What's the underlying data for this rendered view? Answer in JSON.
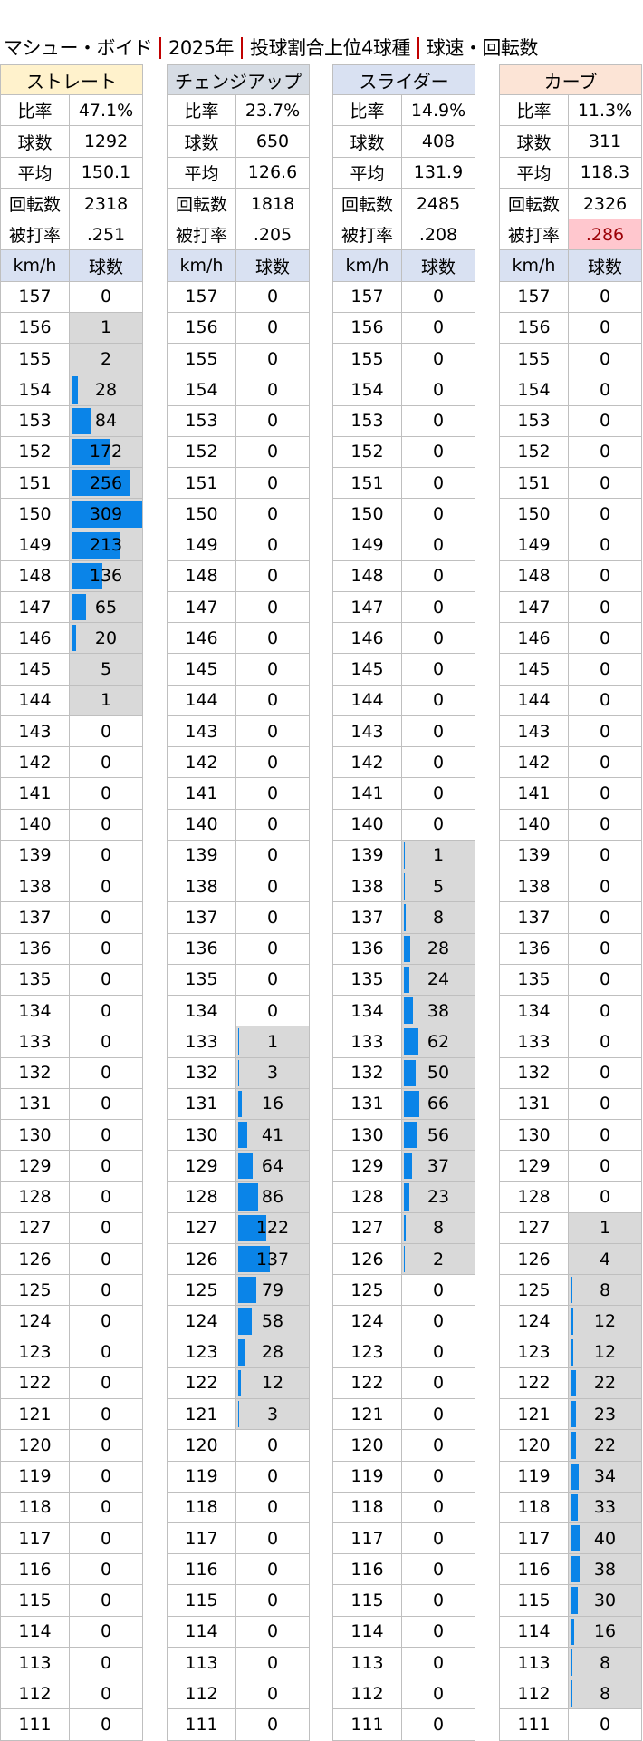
{
  "title": [
    "マシュー・ボイド",
    "2025年",
    "投球割合上位4球種",
    "球速・回転数"
  ],
  "stat_labels": [
    "比率",
    "球数",
    "平均",
    "回転数",
    "被打率"
  ],
  "speed_header": [
    "km/h",
    "球数"
  ],
  "speeds": [
    157,
    156,
    155,
    154,
    153,
    152,
    151,
    150,
    149,
    148,
    147,
    146,
    145,
    144,
    143,
    142,
    141,
    140,
    139,
    138,
    137,
    136,
    135,
    134,
    133,
    132,
    131,
    130,
    129,
    128,
    127,
    126,
    125,
    124,
    123,
    122,
    121,
    120,
    119,
    118,
    117,
    116,
    115,
    114,
    113,
    112,
    111
  ],
  "colors": {
    "bar": "#0a84e8",
    "nonzero_bg": "#d9d9d9",
    "highlight_bg": "#ffc7ce",
    "highlight_text": "#9c0006",
    "subheader_bg": "#d9e1f2"
  },
  "bar_scale_max": 309,
  "pitches": [
    {
      "name": "ストレート",
      "header_color": "#fff2cc",
      "stats": [
        "47.1%",
        "1292",
        "150.1",
        "2318",
        ".251"
      ],
      "highlight_stat": null,
      "counts": [
        0,
        1,
        2,
        28,
        84,
        172,
        256,
        309,
        213,
        136,
        65,
        20,
        5,
        1,
        0,
        0,
        0,
        0,
        0,
        0,
        0,
        0,
        0,
        0,
        0,
        0,
        0,
        0,
        0,
        0,
        0,
        0,
        0,
        0,
        0,
        0,
        0,
        0,
        0,
        0,
        0,
        0,
        0,
        0,
        0,
        0,
        0
      ]
    },
    {
      "name": "チェンジアップ",
      "header_color": "#d6dce4",
      "stats": [
        "23.7%",
        "650",
        "126.6",
        "1818",
        ".205"
      ],
      "highlight_stat": null,
      "counts": [
        0,
        0,
        0,
        0,
        0,
        0,
        0,
        0,
        0,
        0,
        0,
        0,
        0,
        0,
        0,
        0,
        0,
        0,
        0,
        0,
        0,
        0,
        0,
        0,
        1,
        3,
        16,
        41,
        64,
        86,
        122,
        137,
        79,
        58,
        28,
        12,
        3,
        0,
        0,
        0,
        0,
        0,
        0,
        0,
        0,
        0,
        0
      ]
    },
    {
      "name": "スライダー",
      "header_color": "#d9e1f2",
      "stats": [
        "14.9%",
        "408",
        "131.9",
        "2485",
        ".208"
      ],
      "highlight_stat": null,
      "counts": [
        0,
        0,
        0,
        0,
        0,
        0,
        0,
        0,
        0,
        0,
        0,
        0,
        0,
        0,
        0,
        0,
        0,
        0,
        1,
        5,
        8,
        28,
        24,
        38,
        62,
        50,
        66,
        56,
        37,
        23,
        8,
        2,
        0,
        0,
        0,
        0,
        0,
        0,
        0,
        0,
        0,
        0,
        0,
        0,
        0,
        0,
        0
      ]
    },
    {
      "name": "カーブ",
      "header_color": "#fce4d6",
      "stats": [
        "11.3%",
        "311",
        "118.3",
        "2326",
        ".286"
      ],
      "highlight_stat": 4,
      "counts": [
        0,
        0,
        0,
        0,
        0,
        0,
        0,
        0,
        0,
        0,
        0,
        0,
        0,
        0,
        0,
        0,
        0,
        0,
        0,
        0,
        0,
        0,
        0,
        0,
        0,
        0,
        0,
        0,
        0,
        0,
        1,
        4,
        8,
        12,
        12,
        22,
        23,
        22,
        34,
        33,
        40,
        38,
        30,
        16,
        8,
        8,
        0
      ]
    }
  ]
}
